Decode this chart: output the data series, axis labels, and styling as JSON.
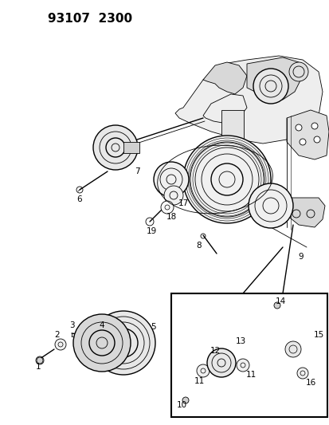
{
  "header": "93107  2300",
  "bg_color": "#ffffff",
  "fig_width": 4.14,
  "fig_height": 5.33,
  "dpi": 100,
  "header_fontsize": 11,
  "label_fontsize": 7.5,
  "lw_main": 1.0,
  "lw_thin": 0.6,
  "gray_fill": "#d8d8d8",
  "light_fill": "#eeeeee"
}
